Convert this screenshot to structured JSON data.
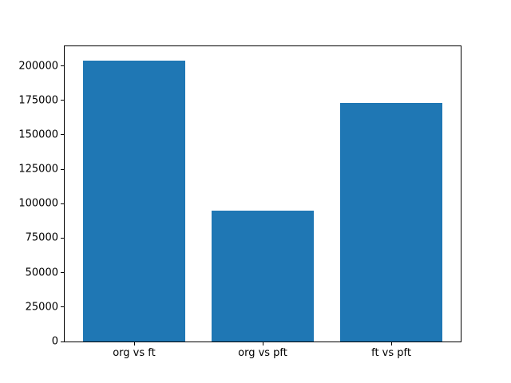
{
  "chart_data": {
    "type": "bar",
    "categories": [
      "org vs ft",
      "org vs pft",
      "ft vs pft"
    ],
    "values": [
      204000,
      95000,
      173000
    ],
    "title": "",
    "xlabel": "",
    "ylabel": "",
    "ylim": [
      0,
      214200
    ],
    "xlim": [
      -0.54,
      2.54
    ],
    "bar_width": 0.8,
    "yticks": [
      0,
      25000,
      50000,
      75000,
      100000,
      125000,
      150000,
      175000,
      200000
    ],
    "ytick_labels": [
      "0",
      "25000",
      "50000",
      "75000",
      "100000",
      "125000",
      "150000",
      "175000",
      "200000"
    ],
    "grid": false,
    "legend": null,
    "colors": {
      "bar": "#1f77b4",
      "spine": "#000000",
      "background": "#ffffff",
      "tick_text": "#000000"
    }
  }
}
